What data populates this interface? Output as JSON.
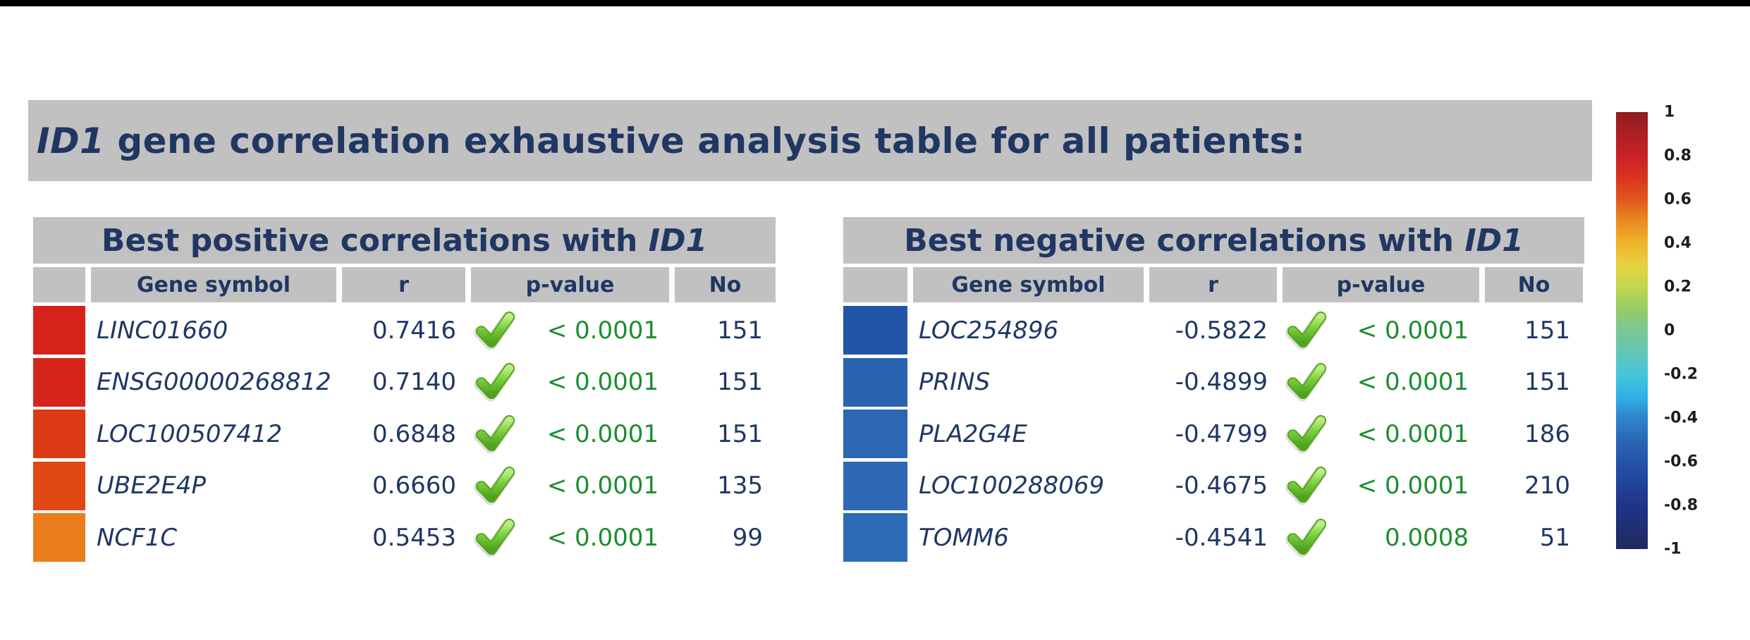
{
  "title": {
    "gene": "ID1",
    "rest": " gene correlation exhaustive analysis table for all patients:"
  },
  "tables": [
    {
      "title_prefix": "Best positive correlations with ",
      "title_gene": "ID1",
      "columns": [
        "Gene symbol",
        "r",
        "p-value",
        "No"
      ],
      "rows": [
        {
          "swatch": "#d6221b",
          "gene": "LINC01660",
          "r": "0.7416",
          "p": "< 0.0001",
          "no": "151"
        },
        {
          "swatch": "#d6241b",
          "gene": "ENSG00000268812",
          "r": "0.7140",
          "p": "< 0.0001",
          "no": "151"
        },
        {
          "swatch": "#dc3a16",
          "gene": "LOC100507412",
          "r": "0.6848",
          "p": "< 0.0001",
          "no": "151"
        },
        {
          "swatch": "#e04814",
          "gene": "UBE2E4P",
          "r": "0.6660",
          "p": "< 0.0001",
          "no": "135"
        },
        {
          "swatch": "#ec7d1d",
          "gene": "NCF1C",
          "r": "0.5453",
          "p": "< 0.0001",
          "no": "99"
        }
      ]
    },
    {
      "title_prefix": "Best negative correlations with ",
      "title_gene": "ID1",
      "columns": [
        "Gene symbol",
        "r",
        "p-value",
        "No"
      ],
      "rows": [
        {
          "swatch": "#2155a8",
          "gene": "LOC254896",
          "r": "-0.5822",
          "p": "< 0.0001",
          "no": "151"
        },
        {
          "swatch": "#2a64b0",
          "gene": "PRINS",
          "r": "-0.4899",
          "p": "< 0.0001",
          "no": "151"
        },
        {
          "swatch": "#2b67b2",
          "gene": "PLA2G4E",
          "r": "-0.4799",
          "p": "< 0.0001",
          "no": "186"
        },
        {
          "swatch": "#2d69b4",
          "gene": "LOC100288069",
          "r": "-0.4675",
          "p": "< 0.0001",
          "no": "210"
        },
        {
          "swatch": "#2e6bb5",
          "gene": "TOMM6",
          "r": "-0.4541",
          "p": "0.0008",
          "no": "51"
        }
      ]
    }
  ],
  "colorbar": {
    "ticks": [
      "1",
      "0.8",
      "0.6",
      "0.4",
      "0.2",
      "0",
      "-0.2",
      "-0.4",
      "-0.6",
      "-0.8",
      "-1"
    ],
    "gradient": [
      "#8f1d21",
      "#ad1f23",
      "#c92126",
      "#d9331f",
      "#e2571d",
      "#eb8a20",
      "#efb42a",
      "#e7d23f",
      "#c3d64d",
      "#97cc65",
      "#7ac795",
      "#64c6b7",
      "#46c5dc",
      "#2fb3e6",
      "#2f85cd",
      "#2a67b4",
      "#2454a8",
      "#21439b",
      "#1f3588",
      "#202e74",
      "#202a5e"
    ]
  },
  "colors": {
    "header_bg": "#c1c1c1",
    "navy_text": "#203764",
    "green_text": "#1d8d30",
    "topbar": "#000000"
  }
}
